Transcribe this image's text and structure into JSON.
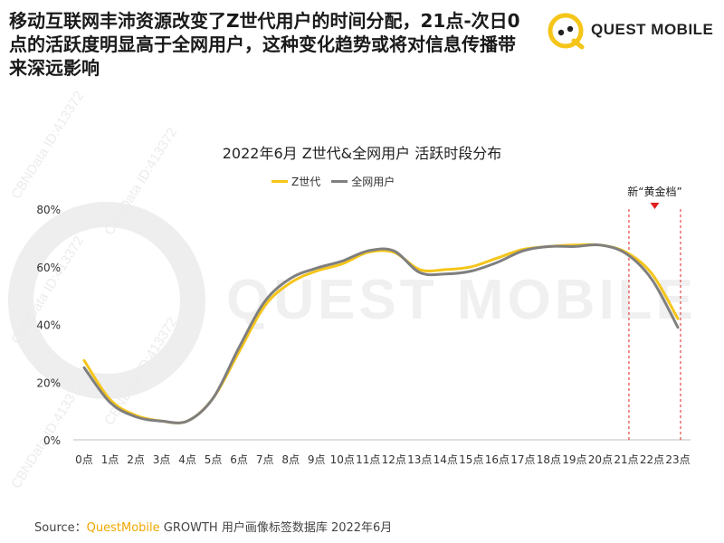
{
  "headline": "移动互联网丰沛资源改变了Z世代用户的时间分配，21点-次日0\n点的活跃度明显高于全网用户，这种变化趋势或将对信息传播带\n来深远影响",
  "logo": {
    "text": "QUEST MOBILE",
    "icon": "questmobile-logo-icon"
  },
  "watermark": {
    "big_text": "QUEST MOBILE",
    "side_text": "CBNData ID:413372"
  },
  "colors": {
    "z_gen": "#f5c518",
    "all_users": "#7f7f7f",
    "brand": "#f0a800",
    "golden_marker": "#e0201f"
  },
  "chart_data": {
    "type": "line",
    "title": "2022年6月 Z世代&全网用户 活跃时段分布",
    "categories": [
      "0点",
      "1点",
      "2点",
      "3点",
      "4点",
      "5点",
      "6点",
      "7点",
      "8点",
      "9点",
      "10点",
      "11点",
      "12点",
      "13点",
      "14点",
      "15点",
      "16点",
      "17点",
      "18点",
      "19点",
      "20点",
      "21点",
      "22点",
      "23点"
    ],
    "series": [
      {
        "name": "Z世代",
        "values": [
          27.5,
          14,
          8.5,
          6.5,
          6.5,
          14.5,
          30.5,
          46.5,
          54.5,
          58.5,
          61,
          65,
          65,
          59,
          59,
          60,
          63,
          66,
          67,
          67.5,
          67.5,
          65,
          57.5,
          42
        ]
      },
      {
        "name": "全网用户",
        "values": [
          25,
          13,
          8,
          6.5,
          6.5,
          14.5,
          32,
          48,
          56,
          59.5,
          62,
          65.5,
          65.5,
          58,
          57.5,
          58.5,
          61.5,
          65.5,
          67,
          67,
          67.5,
          64.5,
          55.5,
          39
        ]
      }
    ],
    "y_ticks": [
      "0%",
      "20%",
      "40%",
      "60%",
      "80%"
    ],
    "ylim": [
      0,
      80
    ],
    "legend_position": "top-center",
    "grid": false,
    "annotation": {
      "label": "新“黄金档”",
      "range_start": "21点",
      "range_end": "23点"
    }
  },
  "source": {
    "prefix": "Source：",
    "brand": "QuestMobile",
    "rest": " GROWTH 用户画像标签数据库 2022年6月"
  }
}
